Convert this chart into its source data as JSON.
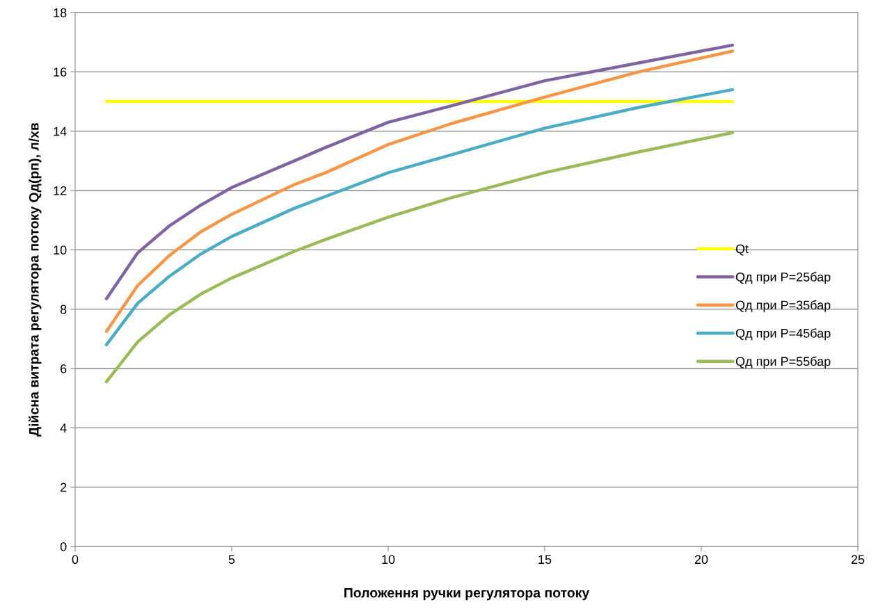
{
  "chart_data": {
    "type": "line",
    "xlabel": "Положення ручки регулятора потоку",
    "ylabel": "Дійсна витрата регулятора потоку Qд(рп), л/хв",
    "x": [
      1,
      2,
      3,
      4,
      5,
      7,
      8,
      10,
      12,
      15,
      18,
      21
    ],
    "series": [
      {
        "name": "Qt",
        "color": "#ffff00",
        "values": [
          15,
          15,
          15,
          15,
          15,
          15,
          15,
          15,
          15,
          15,
          15,
          15
        ]
      },
      {
        "name": "Qд при Р=25бар",
        "color": "#8064a2",
        "values": [
          8.35,
          9.9,
          10.8,
          11.5,
          12.1,
          13.0,
          13.45,
          14.3,
          14.85,
          15.7,
          16.3,
          16.9
        ]
      },
      {
        "name": "Qд при Р=35бар",
        "color": "#f79646",
        "values": [
          7.25,
          8.8,
          9.8,
          10.6,
          11.2,
          12.2,
          12.6,
          13.55,
          14.25,
          15.15,
          16.0,
          16.7
        ]
      },
      {
        "name": "Qд при Р=45бар",
        "color": "#4bacc6",
        "values": [
          6.8,
          8.2,
          9.1,
          9.85,
          10.45,
          11.4,
          11.8,
          12.6,
          13.2,
          14.1,
          14.8,
          15.4
        ]
      },
      {
        "name": "Qд при Р=55бар",
        "color": "#9bbb59",
        "values": [
          5.55,
          6.9,
          7.8,
          8.5,
          9.05,
          9.95,
          10.35,
          11.1,
          11.75,
          12.6,
          13.3,
          13.95
        ]
      }
    ],
    "xlim": [
      0,
      25
    ],
    "xticks": [
      0,
      5,
      10,
      15,
      20,
      25
    ],
    "ylim": [
      0,
      18
    ],
    "yticks": [
      0,
      2,
      4,
      6,
      8,
      10,
      12,
      14,
      16,
      18
    ],
    "grid": "y",
    "legend": "right",
    "marker": "none",
    "line_style": "solid"
  }
}
